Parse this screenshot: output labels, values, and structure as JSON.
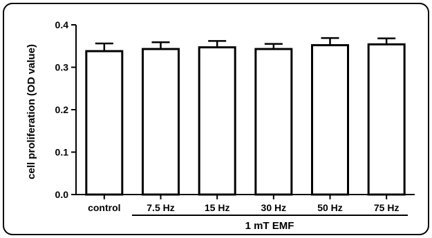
{
  "chart_data": {
    "type": "bar",
    "categories": [
      "control",
      "7.5 Hz",
      "15 Hz",
      "30 Hz",
      "50 Hz",
      "75 Hz"
    ],
    "values": [
      0.338,
      0.343,
      0.347,
      0.343,
      0.352,
      0.354
    ],
    "errors": [
      0.018,
      0.016,
      0.015,
      0.012,
      0.017,
      0.014
    ],
    "ylabel": "cell proliferation (OD value)",
    "yticks": [
      "0.0",
      "0.1",
      "0.2",
      "0.3",
      "0.4"
    ],
    "ylim": [
      0,
      0.4
    ],
    "group_label": "1 mT EMF",
    "group_span": [
      "7.5 Hz",
      "75 Hz"
    ],
    "bar_fill": "#ffffff",
    "bar_stroke": "#000000"
  }
}
